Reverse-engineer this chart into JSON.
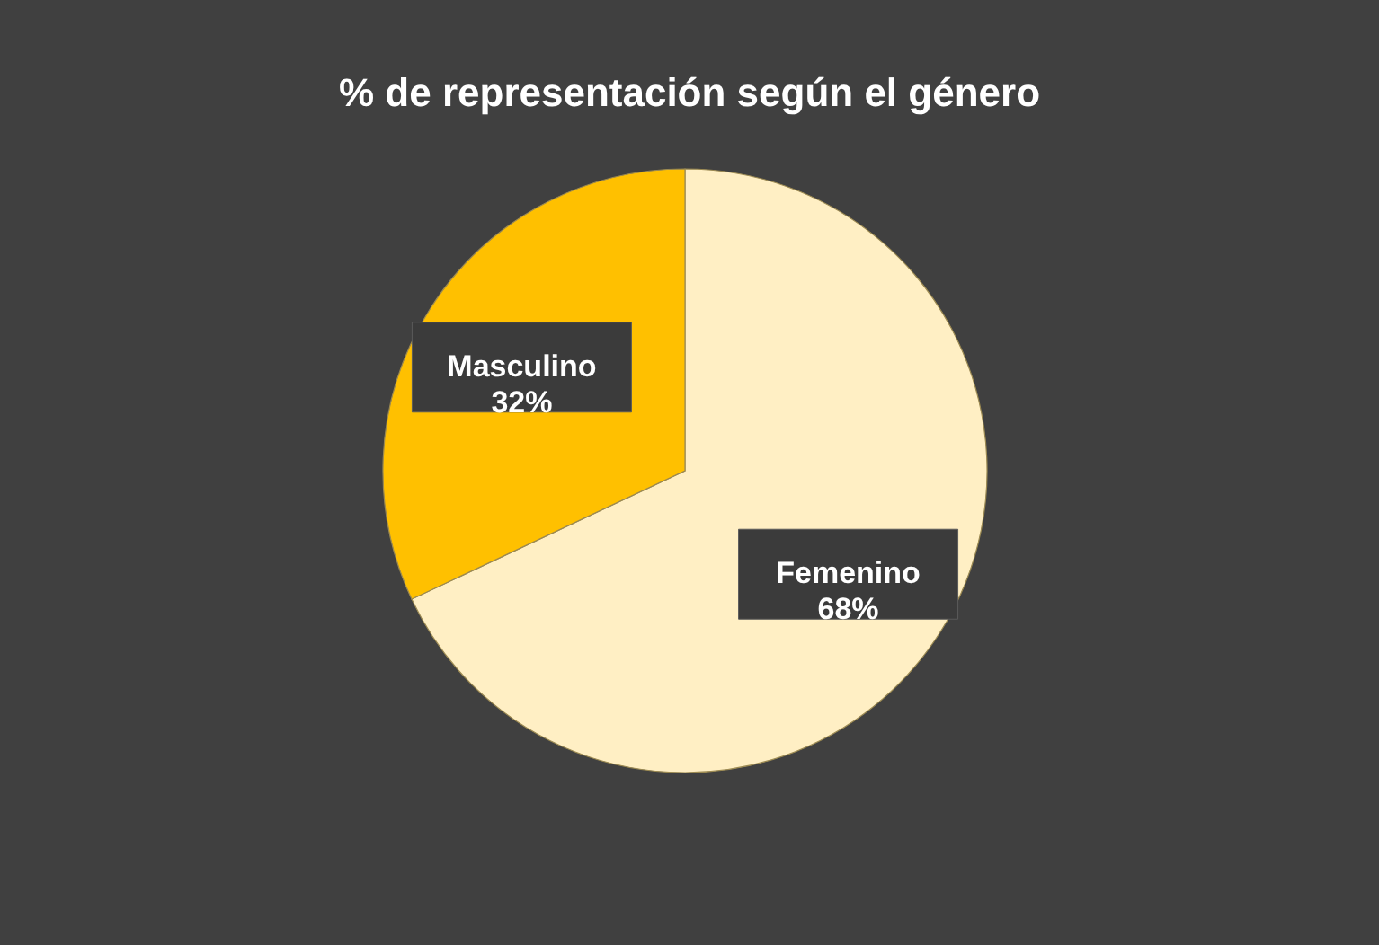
{
  "chart_data": {
    "type": "pie",
    "title": "% de representación según el género",
    "categories": [
      "Femenino",
      "Masculino"
    ],
    "values": [
      68,
      32
    ],
    "colors": [
      "#ffefc4",
      "#ffc000"
    ],
    "value_labels": [
      "68%",
      "32%"
    ],
    "legend": false
  }
}
